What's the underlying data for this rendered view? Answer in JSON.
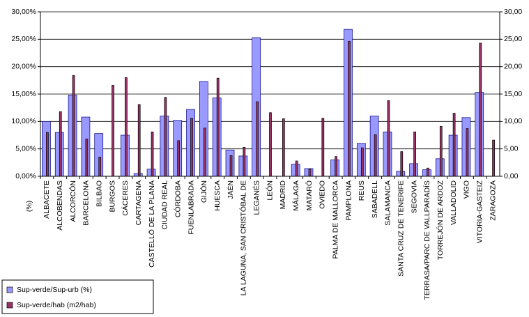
{
  "chart_data": {
    "type": "bar",
    "y_label": "(%)",
    "categories": [
      "ALBACETE",
      "ALCOBENDAS",
      "ALCORCÓN",
      "BARCELONA",
      "BILBAO",
      "BURGOS",
      "CÁCERES",
      "CARTAGENA",
      "CASTELLÓ DE LA PLANA",
      "CIUDAD REAL",
      "CÓRDOBA",
      "FUENLABRADA",
      "GIJÓN",
      "HUESCA",
      "JAÉN",
      "LA LAGUNA, SAN CRISTÓBAL DE",
      "LEGANÉS",
      "LEÓN",
      "MADRID",
      "MÁLAGA",
      "MATARÓ",
      "OVIEDO",
      "PALMA DE MALLORCA",
      "PAMPLONA",
      "REUS",
      "SABADELL",
      "SALAMANCA",
      "SANTA CRUZ DE TENERIFE",
      "SEGOVIA",
      "TERRASA/PARC DE VALLPARADÍS",
      "TORREJÓN DE ARDOZ",
      "VALLADOLID",
      "VIGO",
      "VITORIA-GASTEIZ",
      "ZARAGOZA"
    ],
    "series": [
      {
        "name": "Sup-verde/Sup-urb (%)",
        "color": "#9999ff",
        "values": [
          10.0,
          8.0,
          14.8,
          10.8,
          7.8,
          0,
          7.5,
          0.5,
          1.3,
          11.0,
          10.2,
          12.2,
          17.3,
          14.3,
          4.8,
          3.7,
          25.3,
          0,
          0,
          2.2,
          1.4,
          0,
          3.0,
          26.8,
          6.0,
          11.0,
          8.1,
          0.9,
          2.3,
          1.2,
          3.2,
          7.5,
          10.7,
          15.3,
          0
        ]
      },
      {
        "name": "Sup-verde/hab (m2/hab)",
        "color": "#993366",
        "axis": "y2",
        "values": [
          8.0,
          11.8,
          18.4,
          6.8,
          3.5,
          16.6,
          18.0,
          13.1,
          8.1,
          14.4,
          6.5,
          10.6,
          8.8,
          17.9,
          3.8,
          5.3,
          13.6,
          11.6,
          10.5,
          2.8,
          1.3,
          10.6,
          3.6,
          24.6,
          5.2,
          7.6,
          13.8,
          4.5,
          8.1,
          1.5,
          9.1,
          11.5,
          8.7,
          24.3,
          6.6
        ]
      }
    ],
    "ylim": [
      0,
      30
    ],
    "yticks": [
      {
        "value": 0,
        "label": "0,00%"
      },
      {
        "value": 5,
        "label": "5,00%"
      },
      {
        "value": 10,
        "label": "10,00%"
      },
      {
        "value": 15,
        "label": "15,00%"
      },
      {
        "value": 20,
        "label": "20,00%"
      },
      {
        "value": 25,
        "label": "25,00%"
      },
      {
        "value": 30,
        "label": "30,00%"
      }
    ],
    "y2lim": [
      0,
      30
    ],
    "y2ticks": [
      {
        "value": 0,
        "label": "0,00"
      },
      {
        "value": 5,
        "label": "5,00"
      },
      {
        "value": 10,
        "label": "10,00"
      },
      {
        "value": 15,
        "label": "15,00"
      },
      {
        "value": 20,
        "label": "20,00"
      },
      {
        "value": 25,
        "label": "25,00"
      },
      {
        "value": 30,
        "label": "30,00"
      }
    ],
    "grid": true,
    "legend": "bottom-left"
  }
}
